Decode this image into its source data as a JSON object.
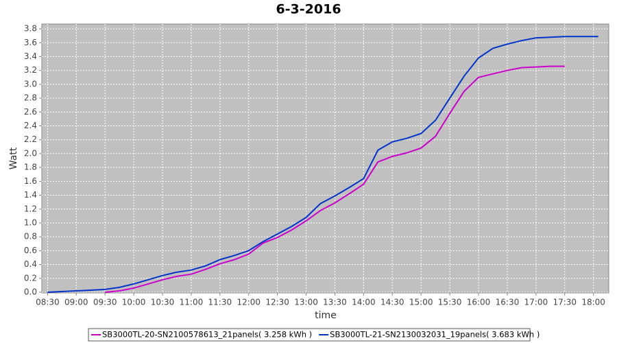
{
  "chart_data": {
    "type": "line",
    "title": "6-3-2016",
    "xlabel": "time",
    "ylabel": "Watt",
    "x": [
      "08:30",
      "08:45",
      "09:00",
      "09:15",
      "09:30",
      "09:45",
      "10:00",
      "10:15",
      "10:30",
      "10:45",
      "11:00",
      "11:15",
      "11:30",
      "11:45",
      "12:00",
      "12:15",
      "12:30",
      "12:45",
      "13:00",
      "13:15",
      "13:30",
      "13:45",
      "14:00",
      "14:15",
      "14:30",
      "14:45",
      "15:00",
      "15:15",
      "15:30",
      "15:45",
      "16:00",
      "16:15",
      "16:30",
      "16:45",
      "17:00",
      "17:15",
      "17:30",
      "17:45",
      "18:00",
      "18:05"
    ],
    "series": [
      {
        "name": "SB3000TL-20-SN2100578613_21panels( 3.258 kWh )",
        "color": "#cc00cc",
        "values": [
          null,
          null,
          null,
          null,
          0.0,
          0.02,
          0.06,
          0.12,
          0.18,
          0.23,
          0.26,
          0.33,
          0.41,
          0.47,
          0.55,
          0.71,
          0.79,
          0.9,
          1.03,
          1.18,
          1.29,
          1.42,
          1.56,
          1.88,
          1.96,
          2.01,
          2.08,
          2.25,
          2.58,
          2.9,
          3.1,
          3.15,
          3.2,
          3.24,
          3.25,
          3.26,
          3.26,
          null,
          null,
          null
        ]
      },
      {
        "name": "SB3000TL-21-SN2130032031_19panels( 3.683 kWh )",
        "color": "#0033cc",
        "values": [
          0.0,
          0.01,
          0.02,
          0.03,
          0.04,
          0.07,
          0.12,
          0.18,
          0.24,
          0.29,
          0.32,
          0.38,
          0.47,
          0.53,
          0.6,
          0.73,
          0.84,
          0.95,
          1.08,
          1.28,
          1.39,
          1.51,
          1.64,
          2.05,
          2.17,
          2.22,
          2.29,
          2.48,
          2.8,
          3.12,
          3.38,
          3.52,
          3.58,
          3.63,
          3.67,
          3.68,
          3.69,
          3.69,
          3.69,
          3.69
        ]
      }
    ],
    "xlim": [
      "08:24",
      "18:16"
    ],
    "xticks": [
      "08:30",
      "09:00",
      "09:30",
      "10:00",
      "10:30",
      "11:00",
      "11:30",
      "12:00",
      "12:30",
      "13:00",
      "13:30",
      "14:00",
      "14:30",
      "15:00",
      "15:30",
      "16:00",
      "16:30",
      "17:00",
      "17:30",
      "18:00"
    ],
    "ylim": [
      -0.01,
      3.87
    ],
    "yticks": [
      {
        "value": 0,
        "label": "0.0"
      },
      0.2,
      0.4,
      0.6,
      0.8,
      {
        "value": 1,
        "label": "1.0"
      },
      1.2,
      1.4,
      1.6,
      1.8,
      {
        "value": 2,
        "label": "2.0"
      },
      2.2,
      2.4,
      2.6,
      2.8,
      {
        "value": 3,
        "label": "3.0"
      },
      3.2,
      3.4,
      3.6,
      3.8
    ],
    "grid": true,
    "legend": "bottom"
  }
}
